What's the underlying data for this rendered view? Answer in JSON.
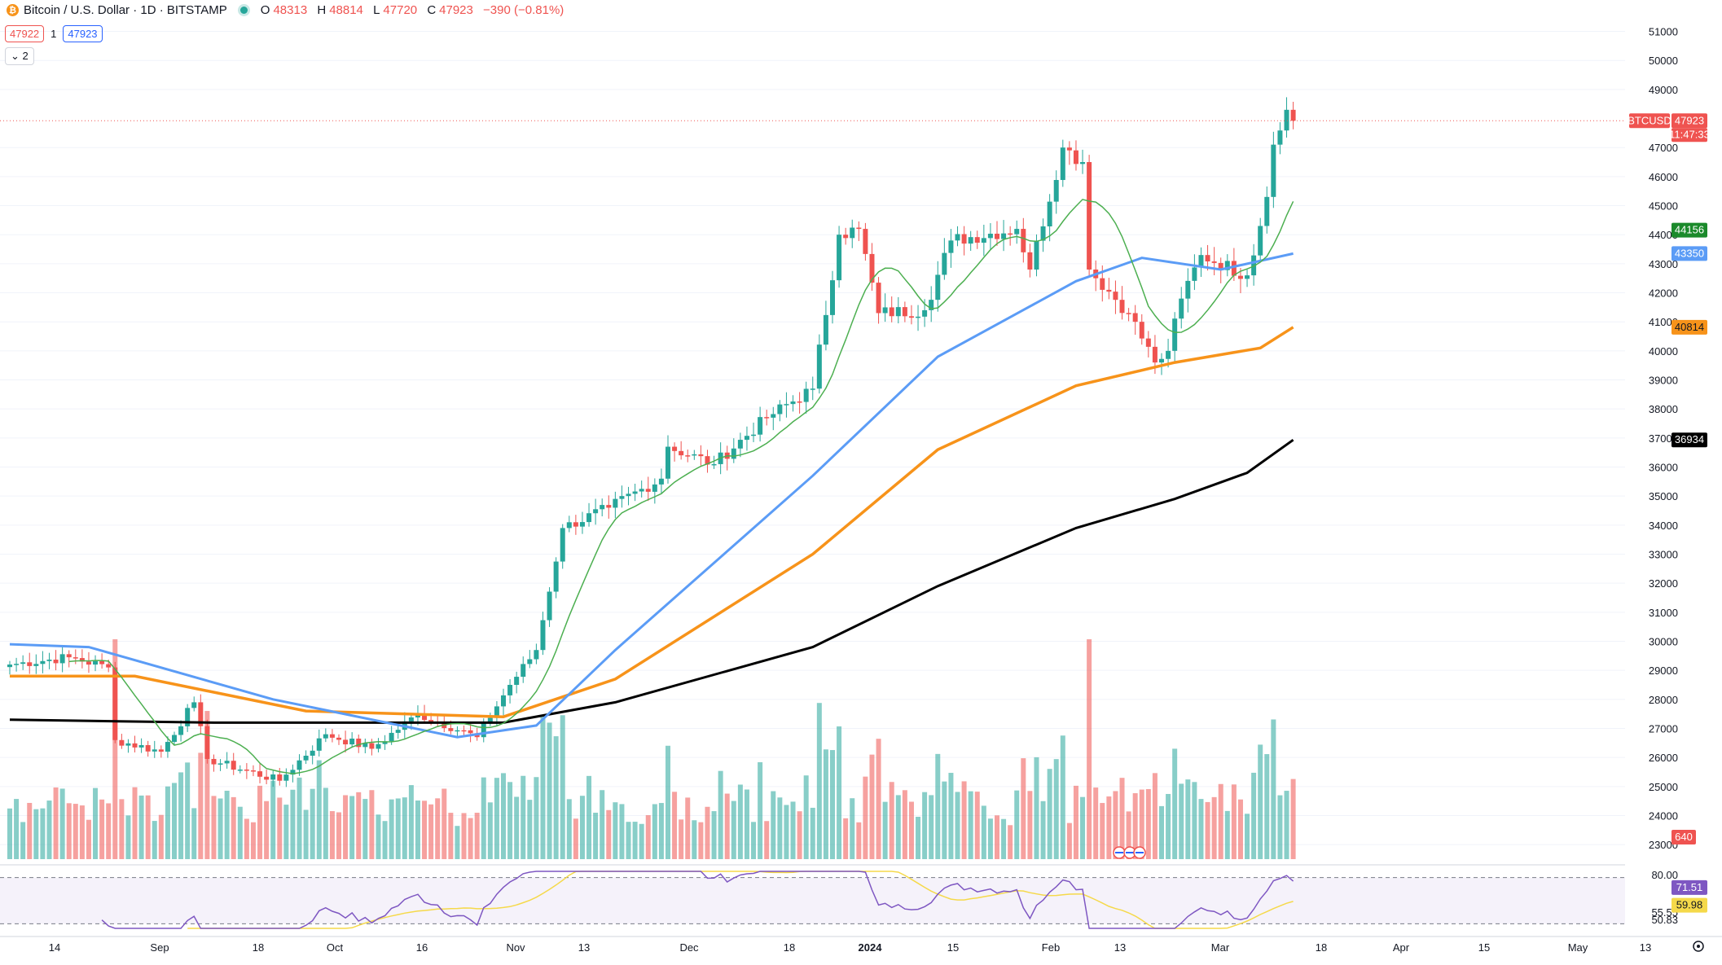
{
  "header": {
    "symbol_title": "Bitcoin / U.S. Dollar · 1D · BITSTAMP",
    "open_label": "O",
    "open": "48313",
    "high_label": "H",
    "high": "48814",
    "low_label": "L",
    "low": "47720",
    "close_label": "C",
    "close": "47923",
    "change": "−390 (−0.81%)",
    "bid": "47922",
    "spread": "1",
    "ask": "47923",
    "indicators_collapsed": "⌄ 2"
  },
  "colors": {
    "up": "#26a69a",
    "down": "#ef5350",
    "ma_short": "#4caf50",
    "ma_mid": "#5b9cf6",
    "ma_long": "#f7931a",
    "ma_200": "#000000",
    "rsi": "#7e57c2",
    "rsi_ma": "#f5d94a"
  },
  "chart_data": [
    {
      "type": "candlestick",
      "title": "Bitcoin / U.S. Dollar · 1D · BITSTAMP",
      "ylim": [
        22500,
        51800
      ],
      "y_ticks": [
        23000,
        24000,
        25000,
        26000,
        27000,
        28000,
        29000,
        30000,
        31000,
        32000,
        33000,
        34000,
        35000,
        36000,
        37000,
        38000,
        39000,
        40000,
        41000,
        42000,
        43000,
        44000,
        45000,
        46000,
        47000,
        49000,
        50000,
        51000
      ],
      "x_ticks": [
        "14",
        "Sep",
        "18",
        "Oct",
        "16",
        "Nov",
        "13",
        "Dec",
        "18",
        "2024",
        "15",
        "Feb",
        "13",
        "Mar",
        "18",
        "Apr",
        "15",
        "May",
        "13"
      ],
      "grid": true,
      "last_price_label": "BTCUSD",
      "last_price": "47923",
      "countdown": "11:47:33",
      "keypoints": [
        {
          "date": "2023-08-01",
          "close": 29200
        },
        {
          "date": "2023-08-10",
          "close": 29450
        },
        {
          "date": "2023-08-16",
          "close": 29100
        },
        {
          "date": "2023-08-17",
          "close": 26600
        },
        {
          "date": "2023-08-24",
          "close": 26200
        },
        {
          "date": "2023-08-29",
          "close": 27900
        },
        {
          "date": "2023-08-31",
          "close": 25950
        },
        {
          "date": "2023-09-11",
          "close": 25200
        },
        {
          "date": "2023-09-18",
          "close": 26800
        },
        {
          "date": "2023-09-25",
          "close": 26300
        },
        {
          "date": "2023-10-02",
          "close": 27500
        },
        {
          "date": "2023-10-11",
          "close": 26700
        },
        {
          "date": "2023-10-16",
          "close": 28500
        },
        {
          "date": "2023-10-20",
          "close": 29700
        },
        {
          "date": "2023-10-24",
          "close": 33900
        },
        {
          "date": "2023-10-31",
          "close": 34600
        },
        {
          "date": "2023-11-08",
          "close": 35600
        },
        {
          "date": "2023-11-09",
          "close": 36700
        },
        {
          "date": "2023-11-16",
          "close": 36100
        },
        {
          "date": "2023-11-24",
          "close": 37700
        },
        {
          "date": "2023-12-01",
          "close": 38700
        },
        {
          "date": "2023-12-05",
          "close": 44000
        },
        {
          "date": "2023-12-08",
          "close": 44200
        },
        {
          "date": "2023-12-11",
          "close": 41300
        },
        {
          "date": "2023-12-18",
          "close": 41400
        },
        {
          "date": "2023-12-22",
          "close": 43800
        },
        {
          "date": "2024-01-01",
          "close": 44200
        },
        {
          "date": "2024-01-03",
          "close": 42800
        },
        {
          "date": "2024-01-08",
          "close": 47000
        },
        {
          "date": "2024-01-11",
          "close": 46500
        },
        {
          "date": "2024-01-12",
          "close": 42800
        },
        {
          "date": "2024-01-18",
          "close": 41300
        },
        {
          "date": "2024-01-22",
          "close": 39600
        },
        {
          "date": "2024-01-24",
          "close": 40000
        },
        {
          "date": "2024-01-26",
          "close": 41800
        },
        {
          "date": "2024-01-29",
          "close": 43300
        },
        {
          "date": "2024-02-05",
          "close": 42600
        },
        {
          "date": "2024-02-07",
          "close": 44300
        },
        {
          "date": "2024-02-08",
          "close": 45300
        },
        {
          "date": "2024-02-09",
          "close": 47100
        },
        {
          "date": "2024-02-11",
          "close": 48300
        },
        {
          "date": "2024-02-12",
          "close": 47923
        }
      ],
      "ma_levels": [
        {
          "name": "MA short",
          "value": "44156"
        },
        {
          "name": "MA mid",
          "value": "43350"
        },
        {
          "name": "MA long",
          "value": "40814"
        },
        {
          "name": "MA 200",
          "value": "36934"
        }
      ],
      "ma_keypoints": {
        "ma_mid": [
          [
            "2023-08-01",
            29900
          ],
          [
            "2023-08-13",
            29800
          ],
          [
            "2023-09-10",
            28000
          ],
          [
            "2023-10-08",
            26700
          ],
          [
            "2023-10-20",
            27100
          ],
          [
            "2023-11-01",
            29700
          ],
          [
            "2023-12-01",
            35700
          ],
          [
            "2023-12-20",
            39800
          ],
          [
            "2024-01-10",
            42400
          ],
          [
            "2024-01-20",
            43200
          ],
          [
            "2024-02-01",
            42800
          ],
          [
            "2024-02-12",
            43350
          ]
        ],
        "ma_long": [
          [
            "2023-08-01",
            28800
          ],
          [
            "2023-08-20",
            28800
          ],
          [
            "2023-09-15",
            27600
          ],
          [
            "2023-10-15",
            27400
          ],
          [
            "2023-11-01",
            28700
          ],
          [
            "2023-12-01",
            33000
          ],
          [
            "2023-12-20",
            36600
          ],
          [
            "2024-01-10",
            38800
          ],
          [
            "2024-01-25",
            39600
          ],
          [
            "2024-02-07",
            40100
          ],
          [
            "2024-02-12",
            40814
          ]
        ],
        "ma_200": [
          [
            "2023-08-01",
            27300
          ],
          [
            "2023-09-01",
            27200
          ],
          [
            "2023-10-15",
            27200
          ],
          [
            "2023-11-01",
            27900
          ],
          [
            "2023-12-01",
            29800
          ],
          [
            "2023-12-20",
            31900
          ],
          [
            "2024-01-10",
            33900
          ],
          [
            "2024-01-25",
            34900
          ],
          [
            "2024-02-05",
            35800
          ],
          [
            "2024-02-12",
            36934
          ]
        ]
      },
      "volume": {
        "last_label": "640"
      }
    },
    {
      "type": "line",
      "title": "RSI",
      "ylim": [
        45,
        82
      ],
      "y_ticks": [
        "80.00",
        "55.55",
        "50.83"
      ],
      "rsi_value": "71.51",
      "rsi_ma_value": "59.98",
      "band_upper": 70,
      "band_lower": 30
    }
  ]
}
